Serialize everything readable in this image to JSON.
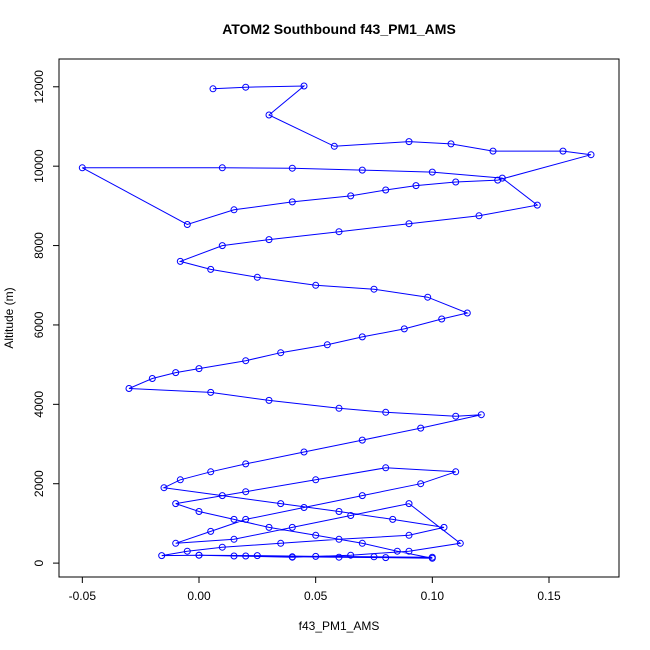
{
  "chart_data": {
    "type": "scatter",
    "title": "ATOM2 Southbound f43_PM1_AMS",
    "xlabel": "f43_PM1_AMS",
    "ylabel": "Altitude (m)",
    "xlim": [
      -0.06,
      0.18
    ],
    "ylim": [
      -350,
      12700
    ],
    "x_ticks": [
      -0.05,
      0.0,
      0.05,
      0.1,
      0.15
    ],
    "x_tick_labels": [
      "-0.05",
      "0.00",
      "0.05",
      "0.10",
      "0.15"
    ],
    "y_ticks": [
      0,
      2000,
      4000,
      6000,
      8000,
      10000,
      12000
    ],
    "y_tick_labels": [
      "0",
      "2000",
      "4000",
      "6000",
      "8000",
      "10000",
      "12000"
    ],
    "grid": false,
    "connected": true,
    "marker": "open-circle",
    "color": "#0000ff",
    "series": [
      {
        "x": [
          0.006,
          0.02,
          0.045,
          0.03,
          0.058,
          0.09,
          0.108,
          0.126,
          0.156,
          0.168,
          0.128,
          0.11,
          0.093,
          0.08,
          0.065,
          0.04,
          0.015,
          -0.005,
          -0.05,
          0.01,
          0.04,
          0.07,
          0.1,
          0.13,
          0.145,
          0.12,
          0.09,
          0.06,
          0.03,
          0.01,
          -0.008,
          0.005,
          0.025,
          0.05,
          0.075,
          0.098,
          0.115,
          0.104,
          0.088,
          0.07,
          0.055,
          0.035,
          0.02,
          0.0,
          -0.01,
          -0.02,
          -0.03,
          0.005,
          0.03,
          0.06,
          0.08,
          0.11,
          0.121,
          0.095,
          0.07,
          0.045,
          0.02,
          0.005,
          -0.008,
          -0.015,
          0.01,
          0.035,
          0.06,
          0.083,
          0.105,
          0.09,
          0.06,
          0.035,
          0.01,
          -0.005,
          -0.016,
          0.0,
          0.02,
          0.04,
          0.06,
          0.08,
          0.1,
          0.085,
          0.07,
          0.05,
          0.03,
          0.015,
          0.0,
          -0.01,
          0.02,
          0.05,
          0.08,
          0.11,
          0.095,
          0.07,
          0.045,
          0.02,
          0.005,
          -0.01,
          0.015,
          0.04,
          0.065,
          0.09,
          0.112,
          0.09,
          0.065,
          0.04,
          0.015,
          0.0,
          0.025,
          0.05,
          0.075,
          0.1
        ],
        "y": [
          11950,
          11990,
          12020,
          11290,
          10500,
          10620,
          10560,
          10380,
          10380,
          10290,
          9650,
          9600,
          9510,
          9400,
          9250,
          9100,
          8900,
          8530,
          9960,
          9960,
          9950,
          9900,
          9850,
          9700,
          9020,
          8750,
          8550,
          8350,
          8150,
          8000,
          7600,
          7400,
          7200,
          7000,
          6900,
          6700,
          6300,
          6150,
          5900,
          5700,
          5500,
          5300,
          5100,
          4900,
          4800,
          4650,
          4400,
          4300,
          4100,
          3900,
          3800,
          3700,
          3740,
          3400,
          3100,
          2800,
          2500,
          2300,
          2100,
          1900,
          1700,
          1500,
          1300,
          1100,
          900,
          700,
          600,
          500,
          400,
          300,
          190,
          200,
          180,
          160,
          150,
          140,
          120,
          300,
          500,
          700,
          900,
          1100,
          1300,
          1500,
          1800,
          2100,
          2400,
          2300,
          2000,
          1700,
          1400,
          1100,
          800,
          500,
          600,
          900,
          1200,
          1500,
          500,
          300,
          200,
          150,
          180,
          200,
          190,
          170,
          160,
          150
        ]
      }
    ]
  }
}
